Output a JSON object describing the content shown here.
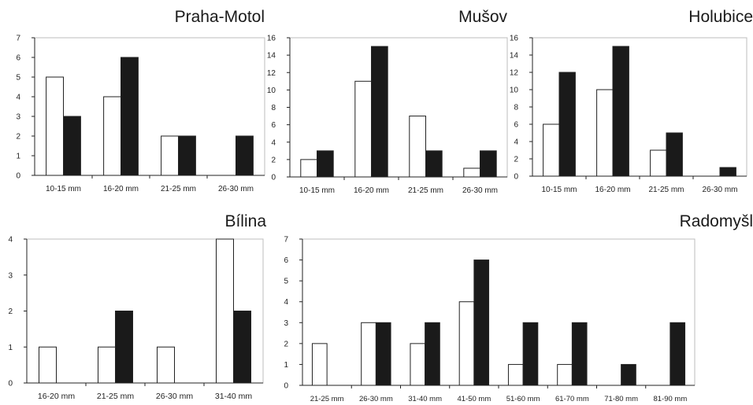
{
  "chart_data": [
    {
      "type": "bar",
      "title": "Praha-Motol",
      "categories": [
        "10-15 mm",
        "16-20 mm",
        "21-25 mm",
        "26-30 mm"
      ],
      "series": [
        {
          "values": [
            5,
            4,
            2,
            0
          ],
          "color": "#ffffff"
        },
        {
          "values": [
            3,
            6,
            2,
            2
          ],
          "color": "#1a1a1a"
        }
      ],
      "ylim": [
        0,
        7
      ],
      "yticks": [
        0,
        1,
        2,
        3,
        4,
        5,
        6,
        7
      ],
      "xlabel": "",
      "ylabel": "",
      "grid": false
    },
    {
      "type": "bar",
      "title": "Mušov",
      "categories": [
        "10-15 mm",
        "16-20 mm",
        "21-25 mm",
        "26-30 mm"
      ],
      "series": [
        {
          "values": [
            2,
            11,
            7,
            1
          ],
          "color": "#ffffff"
        },
        {
          "values": [
            3,
            15,
            3,
            3
          ],
          "color": "#1a1a1a"
        }
      ],
      "ylim": [
        0,
        16
      ],
      "yticks": [
        0,
        2,
        4,
        6,
        8,
        10,
        12,
        14,
        16
      ],
      "xlabel": "",
      "ylabel": "",
      "grid": false
    },
    {
      "type": "bar",
      "title": "Holubice",
      "categories": [
        "10-15 mm",
        "16-20 mm",
        "21-25 mm",
        "26-30 mm"
      ],
      "series": [
        {
          "values": [
            6,
            10,
            3,
            0
          ],
          "color": "#ffffff"
        },
        {
          "values": [
            12,
            15,
            5,
            1
          ],
          "color": "#1a1a1a"
        }
      ],
      "ylim": [
        0,
        16
      ],
      "yticks": [
        0,
        2,
        4,
        6,
        8,
        10,
        12,
        14,
        16
      ],
      "xlabel": "",
      "ylabel": "",
      "grid": false
    },
    {
      "type": "bar",
      "title": "Bílina",
      "categories": [
        "16-20 mm",
        "21-25 mm",
        "26-30 mm",
        "31-40 mm"
      ],
      "series": [
        {
          "values": [
            1,
            1,
            1,
            4
          ],
          "color": "#ffffff"
        },
        {
          "values": [
            0,
            2,
            0,
            2
          ],
          "color": "#1a1a1a"
        }
      ],
      "ylim": [
        0,
        4
      ],
      "yticks": [
        0,
        1,
        2,
        3,
        4
      ],
      "xlabel": "",
      "ylabel": "",
      "grid": false
    },
    {
      "type": "bar",
      "title": "Radomyšl",
      "categories": [
        "21-25 mm",
        "26-30 mm",
        "31-40 mm",
        "41-50 mm",
        "51-60 mm",
        "61-70 mm",
        "71-80 mm",
        "81-90 mm"
      ],
      "series": [
        {
          "values": [
            2,
            3,
            2,
            4,
            1,
            1,
            0,
            0
          ],
          "color": "#ffffff"
        },
        {
          "values": [
            0,
            3,
            3,
            6,
            3,
            3,
            1,
            3
          ],
          "color": "#1a1a1a"
        }
      ],
      "ylim": [
        0,
        7
      ],
      "yticks": [
        0,
        1,
        2,
        3,
        4,
        5,
        6,
        7
      ],
      "xlabel": "",
      "ylabel": "",
      "grid": false
    }
  ]
}
